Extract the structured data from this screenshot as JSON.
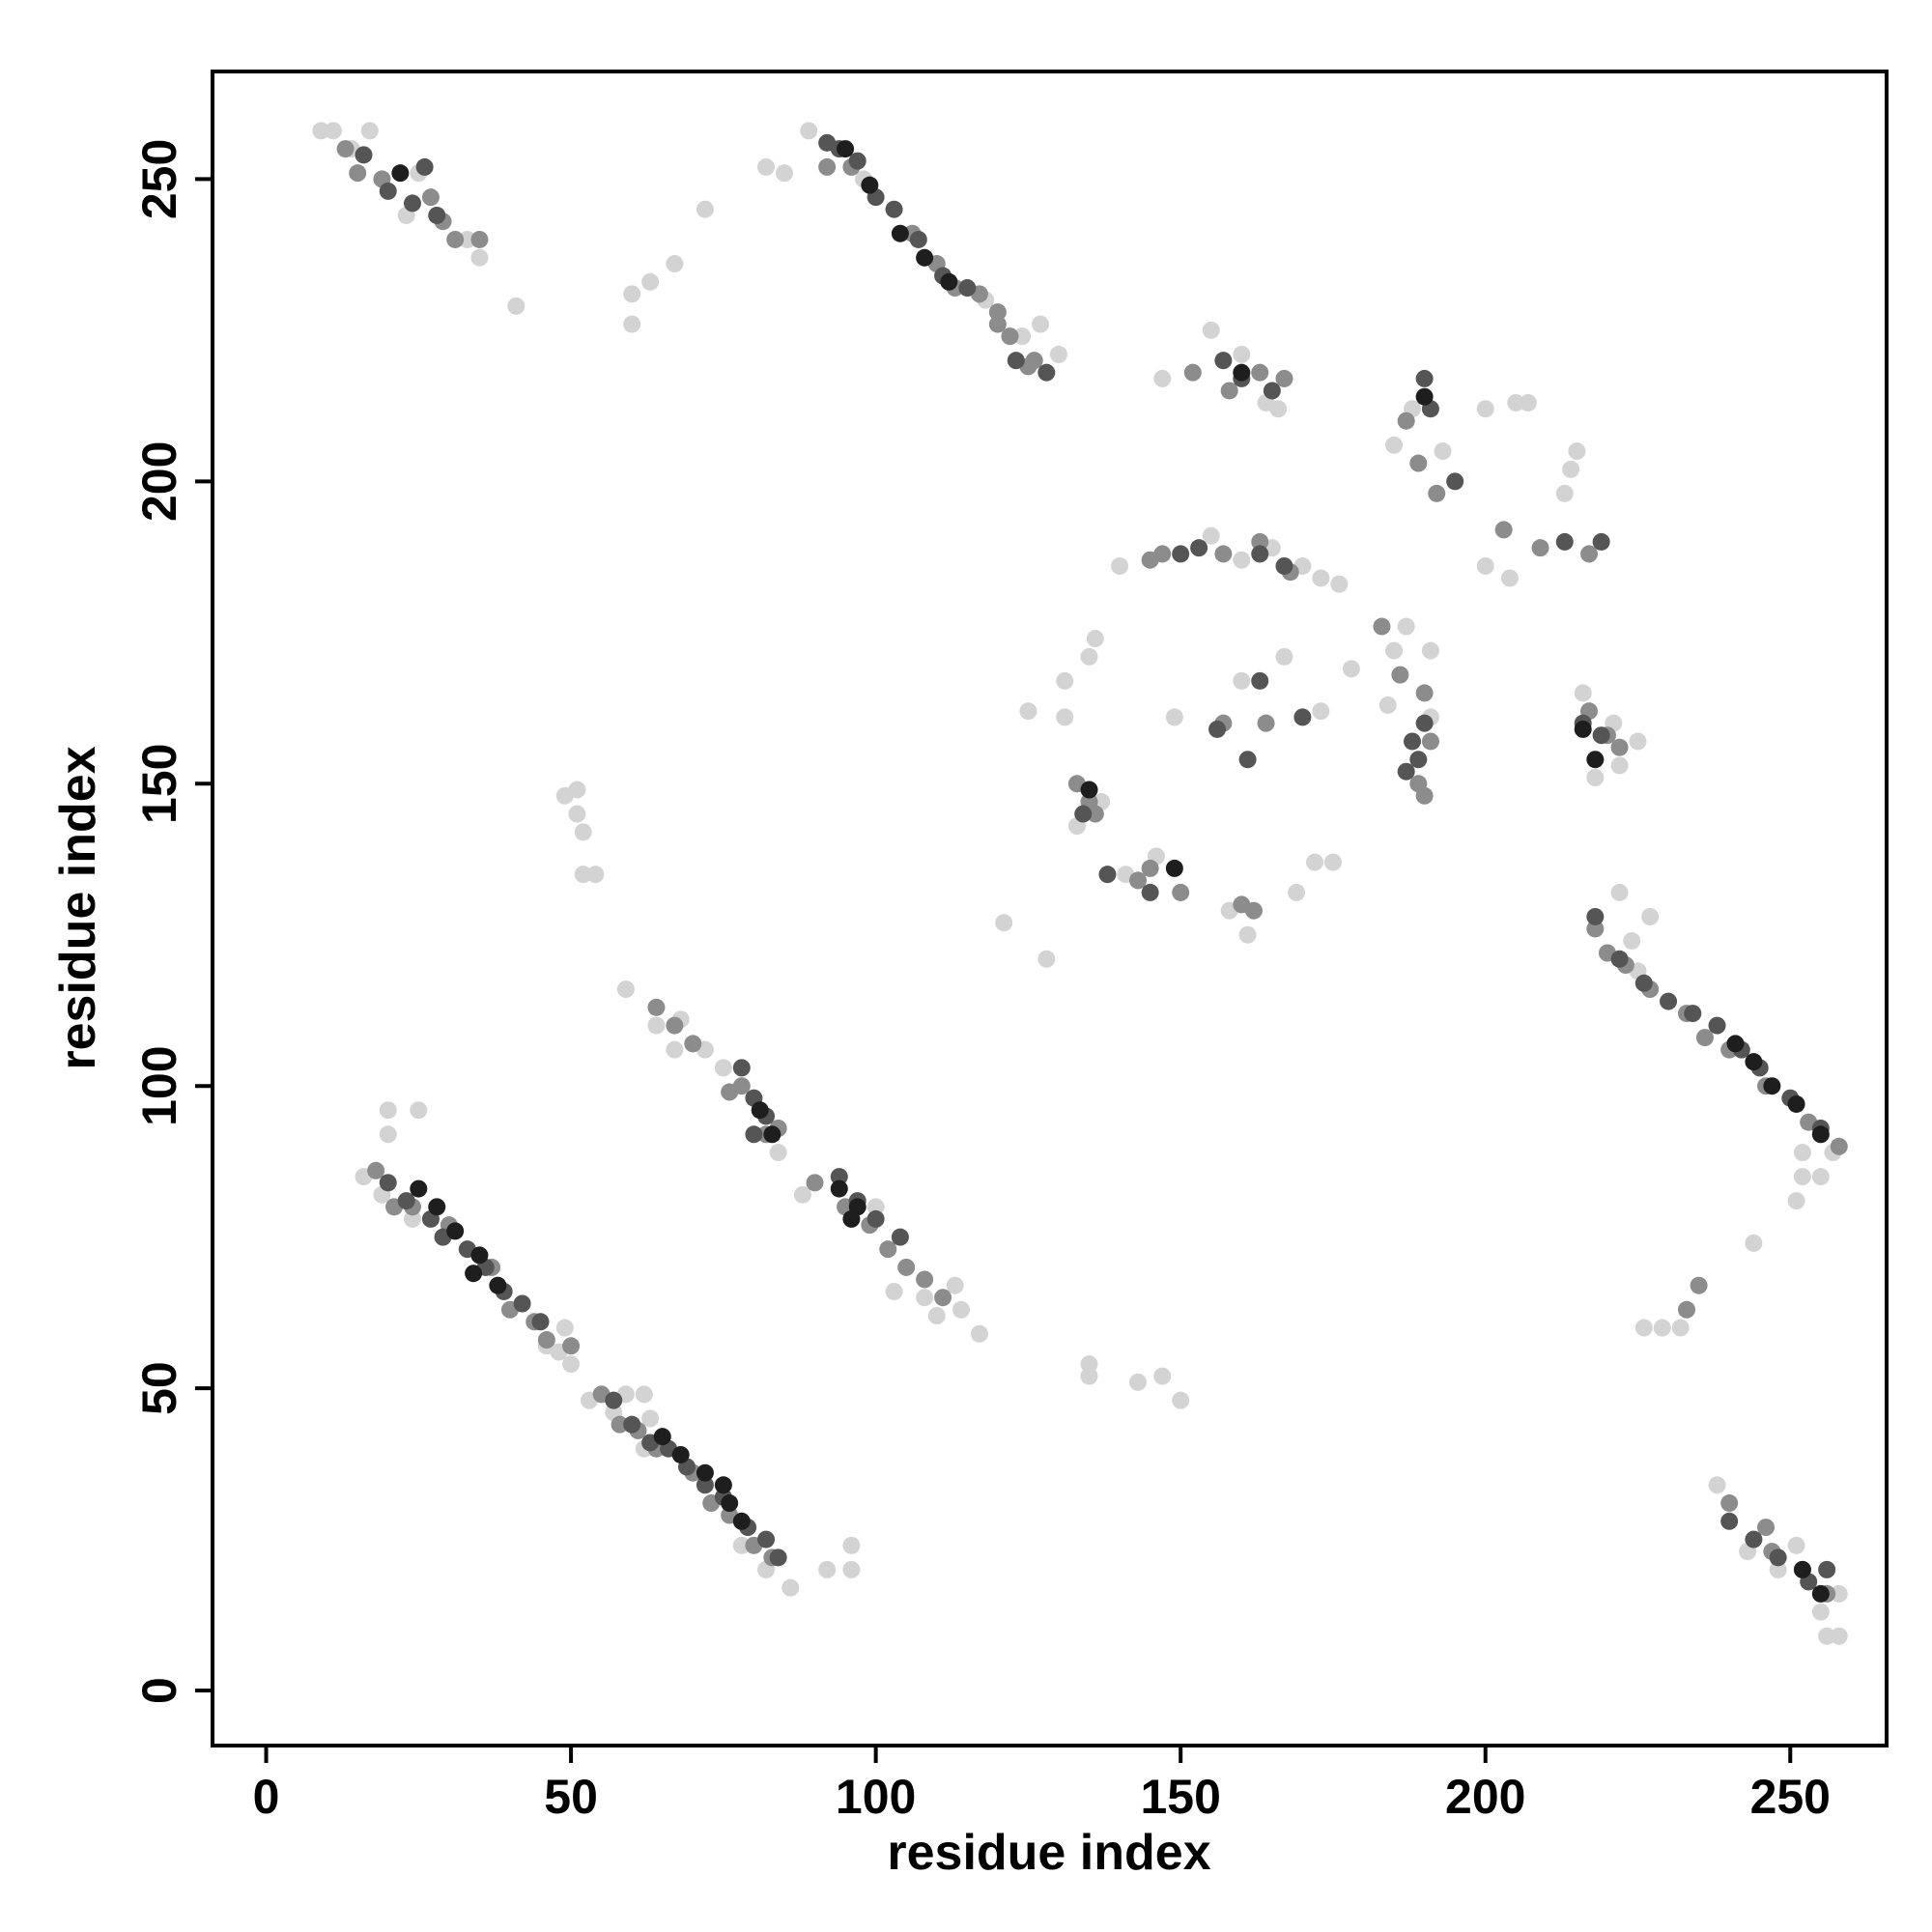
{
  "chart_data": {
    "type": "scatter",
    "xlabel": "residue index",
    "ylabel": "residue index",
    "xlim": [
      -8.8,
      265.8
    ],
    "ylim": [
      -9.1,
      267.8
    ],
    "xticks": [
      0,
      50,
      100,
      150,
      200,
      250
    ],
    "yticks": [
      0,
      50,
      100,
      150,
      200,
      250
    ],
    "marker_radius": 9,
    "series": [
      {
        "color": "#d3d3d3",
        "x": [
          9,
          11,
          17,
          14,
          23,
          25,
          35,
          33,
          41,
          89,
          98,
          118,
          124,
          130,
          127,
          85,
          82,
          72,
          67,
          63,
          60,
          60,
          16,
          20,
          20,
          25,
          19,
          24,
          48,
          49,
          50,
          46,
          53,
          57,
          59,
          62,
          78,
          82,
          86,
          92,
          96,
          96,
          59,
          64,
          68,
          67,
          72,
          75,
          84,
          88,
          103,
          108,
          110,
          114,
          117,
          113,
          222,
          224,
          227,
          225,
          252,
          257,
          252,
          255,
          251,
          244,
          229,
          226,
          232,
          238,
          243,
          248,
          251,
          255,
          258,
          258,
          256,
          147,
          155,
          164,
          166,
          160,
          185,
          188,
          193,
          200,
          205,
          207,
          204,
          200,
          213,
          214,
          215,
          140,
          155,
          160,
          165,
          170,
          173,
          176,
          131,
          125,
          135,
          136,
          131,
          149,
          160,
          167,
          173,
          178,
          185,
          187,
          191,
          184,
          191,
          216,
          221,
          218,
          225,
          222,
          137,
          133,
          141,
          146,
          169,
          172,
          175,
          158,
          161,
          121,
          128,
          135,
          135,
          143,
          147,
          150,
          51,
          51,
          52,
          52,
          54,
          49,
          62,
          63,
          100
        ],
        "y": [
          258,
          258,
          258,
          255,
          244,
          251,
          237,
          240,
          229,
          258,
          250,
          230,
          224,
          221,
          226,
          251,
          252,
          245,
          236,
          233,
          231,
          226,
          85,
          92,
          96,
          96,
          82,
          78,
          56,
          60,
          54,
          57,
          48,
          46,
          49,
          49,
          24,
          20,
          17,
          20,
          20,
          24,
          116,
          110,
          111,
          106,
          106,
          103,
          89,
          82,
          66,
          65,
          62,
          63,
          59,
          67,
          132,
          124,
          128,
          119,
          89,
          89,
          85,
          85,
          81,
          74,
          60,
          60,
          60,
          34,
          23,
          20,
          24,
          13,
          16,
          9,
          9,
          217,
          225,
          213,
          212,
          221,
          206,
          212,
          205,
          212,
          213,
          213,
          184,
          186,
          198,
          202,
          205,
          186,
          191,
          187,
          189,
          186,
          184,
          183,
          161,
          162,
          171,
          174,
          167,
          161,
          167,
          171,
          162,
          169,
          172,
          176,
          172,
          163,
          161,
          165,
          160,
          151,
          157,
          153,
          147,
          143,
          135,
          138,
          132,
          137,
          137,
          129,
          125,
          127,
          121,
          54,
          52,
          51,
          52,
          48,
          149,
          145,
          142,
          135,
          135,
          148,
          40,
          45,
          80
        ]
      },
      {
        "color": "#8c8c8c",
        "x": [
          13,
          15,
          19,
          27,
          29,
          31,
          35,
          92,
          96,
          106,
          110,
          113,
          117,
          120,
          122,
          126,
          120,
          125,
          18,
          21,
          24,
          30,
          37,
          40,
          44,
          46,
          50,
          55,
          58,
          61,
          64,
          70,
          73,
          76,
          80,
          83,
          64,
          67,
          70,
          76,
          78,
          82,
          84,
          90,
          95,
          99,
          102,
          105,
          108,
          111,
          218,
          220,
          223,
          227,
          233,
          236,
          240,
          246,
          253,
          258,
          240,
          246,
          247,
          252,
          256,
          235,
          233,
          152,
          158,
          163,
          167,
          187,
          189,
          192,
          203,
          209,
          217,
          145,
          157,
          163,
          168,
          183,
          186,
          190,
          191,
          189,
          190,
          217,
          220,
          222,
          133,
          136,
          143,
          150,
          160,
          162,
          147,
          145,
          135,
          157,
          164
        ],
        "y": [
          255,
          251,
          250,
          247,
          243,
          240,
          240,
          252,
          252,
          241,
          236,
          232,
          231,
          228,
          224,
          220,
          226,
          219,
          86,
          80,
          80,
          77,
          70,
          63,
          61,
          58,
          57,
          49,
          44,
          43,
          40,
          36,
          31,
          29,
          24,
          22,
          113,
          110,
          107,
          99,
          100,
          92,
          93,
          84,
          80,
          77,
          73,
          70,
          68,
          65,
          126,
          122,
          120,
          116,
          112,
          108,
          106,
          100,
          94,
          90,
          31,
          27,
          23,
          20,
          16,
          67,
          63,
          218,
          215,
          218,
          217,
          210,
          203,
          198,
          192,
          189,
          188,
          187,
          188,
          190,
          185,
          176,
          168,
          165,
          157,
          150,
          148,
          162,
          158,
          156,
          150,
          145,
          134,
          132,
          130,
          129,
          188,
          136,
          147,
          160,
          160
        ]
      },
      {
        "color": "#555555",
        "x": [
          16,
          20,
          24,
          28,
          26,
          92,
          94,
          97,
          100,
          103,
          107,
          111,
          115,
          123,
          128,
          20,
          23,
          27,
          29,
          33,
          36,
          39,
          42,
          45,
          57,
          60,
          63,
          66,
          69,
          72,
          75,
          79,
          82,
          84,
          78,
          80,
          82,
          80,
          94,
          97,
          100,
          104,
          218,
          222,
          226,
          230,
          234,
          238,
          242,
          245,
          250,
          255,
          240,
          244,
          248,
          253,
          256,
          157,
          160,
          165,
          190,
          191,
          195,
          213,
          219,
          150,
          153,
          163,
          167,
          188,
          189,
          187,
          190,
          216,
          219,
          134,
          138,
          145,
          161,
          163,
          156,
          170
        ],
        "y": [
          254,
          248,
          246,
          244,
          252,
          256,
          255,
          253,
          247,
          245,
          240,
          234,
          232,
          220,
          218,
          84,
          81,
          78,
          75,
          73,
          70,
          66,
          64,
          61,
          48,
          44,
          41,
          40,
          37,
          34,
          32,
          27,
          25,
          22,
          103,
          98,
          95,
          92,
          85,
          81,
          78,
          75,
          128,
          121,
          117,
          114,
          112,
          110,
          106,
          103,
          98,
          93,
          28,
          25,
          22,
          18,
          20,
          220,
          217,
          215,
          217,
          212,
          200,
          190,
          190,
          188,
          189,
          188,
          186,
          157,
          154,
          152,
          160,
          160,
          158,
          145,
          135,
          132,
          154,
          167,
          159,
          161
        ]
      },
      {
        "color": "#1e1e1e",
        "x": [
          22,
          95,
          99,
          104,
          108,
          112,
          25,
          28,
          31,
          35,
          34,
          38,
          65,
          68,
          72,
          75,
          76,
          78,
          81,
          83,
          94,
          97,
          96,
          247,
          251,
          255,
          241,
          244,
          252,
          255,
          160,
          190,
          216,
          135,
          149,
          218
        ],
        "y": [
          251,
          255,
          249,
          241,
          237,
          233,
          83,
          80,
          76,
          72,
          69,
          67,
          42,
          39,
          36,
          34,
          31,
          28,
          96,
          92,
          83,
          80,
          78,
          100,
          97,
          92,
          107,
          104,
          20,
          16,
          218,
          214,
          159,
          149,
          136,
          154
        ]
      }
    ]
  }
}
